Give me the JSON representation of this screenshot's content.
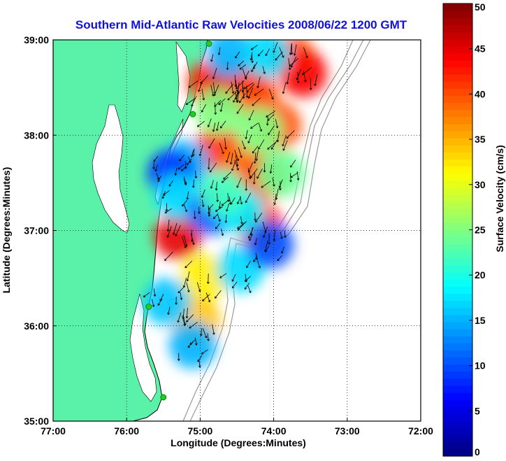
{
  "chart_data": {
    "type": "heatmap",
    "title": "Southern Mid-Atlantic Raw Velocities 2008/06/22 1200 GMT",
    "xlabel": "Longitude (Degrees:Minutes)",
    "ylabel": "Latitude (Degrees:Minutes)",
    "xlim": [
      -77,
      -72
    ],
    "ylim": [
      35,
      39
    ],
    "x_ticks": [
      {
        "v": -77,
        "label": "77:00"
      },
      {
        "v": -76,
        "label": "76:00"
      },
      {
        "v": -75,
        "label": "75:00"
      },
      {
        "v": -74,
        "label": "74:00"
      },
      {
        "v": -73,
        "label": "73:00"
      },
      {
        "v": -72,
        "label": "72:00"
      }
    ],
    "y_ticks": [
      {
        "v": 35,
        "label": "35:00"
      },
      {
        "v": 36,
        "label": "36:00"
      },
      {
        "v": 37,
        "label": "37:00"
      },
      {
        "v": 38,
        "label": "38:00"
      },
      {
        "v": 39,
        "label": "39:00"
      }
    ],
    "grid": true,
    "colorbar": {
      "label": "Surface Velocity (cm/s)",
      "range": [
        0,
        50
      ],
      "ticks": [
        {
          "v": 0,
          "label": "0"
        },
        {
          "v": 5,
          "label": "5"
        },
        {
          "v": 10,
          "label": "10"
        },
        {
          "v": 15,
          "label": "15"
        },
        {
          "v": 20,
          "label": "20"
        },
        {
          "v": 25,
          "label": "25"
        },
        {
          "v": 30,
          "label": "30"
        },
        {
          "v": 35,
          "label": "35"
        },
        {
          "v": 40,
          "label": "40"
        },
        {
          "v": 45,
          "label": "45"
        },
        {
          "v": 50,
          "label": "50"
        }
      ],
      "colormap": "jet"
    },
    "land_color": "#5af2a8",
    "station_color": "#22cc22",
    "stations": [
      {
        "lon": -74.88,
        "lat": 38.96
      },
      {
        "lon": -75.1,
        "lat": 38.22
      },
      {
        "lon": -75.7,
        "lat": 36.2
      },
      {
        "lon": -75.5,
        "lat": 35.25
      }
    ],
    "velocity_field": [
      {
        "lon": -74.85,
        "lat": 38.55,
        "speed": 42
      },
      {
        "lon": -74.6,
        "lat": 38.5,
        "speed": 46
      },
      {
        "lon": -74.4,
        "lat": 38.55,
        "speed": 43
      },
      {
        "lon": -74.25,
        "lat": 38.4,
        "speed": 40
      },
      {
        "lon": -73.75,
        "lat": 38.8,
        "speed": 40
      },
      {
        "lon": -73.6,
        "lat": 38.65,
        "speed": 44
      },
      {
        "lon": -73.95,
        "lat": 38.1,
        "speed": 40
      },
      {
        "lon": -74.75,
        "lat": 37.85,
        "speed": 42
      },
      {
        "lon": -74.4,
        "lat": 37.7,
        "speed": 38
      },
      {
        "lon": -74.15,
        "lat": 37.55,
        "speed": 40
      },
      {
        "lon": -74.2,
        "lat": 37.05,
        "speed": 42
      },
      {
        "lon": -75.3,
        "lat": 36.95,
        "speed": 45
      },
      {
        "lon": -74.95,
        "lat": 36.5,
        "speed": 32
      },
      {
        "lon": -75.05,
        "lat": 36.05,
        "speed": 34
      },
      {
        "lon": -75.2,
        "lat": 37.7,
        "speed": 15
      },
      {
        "lon": -74.6,
        "lat": 38.85,
        "speed": 15
      },
      {
        "lon": -74.1,
        "lat": 38.85,
        "speed": 17
      },
      {
        "lon": -75.4,
        "lat": 37.6,
        "speed": 9
      },
      {
        "lon": -75.3,
        "lat": 37.35,
        "speed": 17
      },
      {
        "lon": -74.85,
        "lat": 37.2,
        "speed": 11
      },
      {
        "lon": -74.45,
        "lat": 37.2,
        "speed": 18
      },
      {
        "lon": -74.45,
        "lat": 36.6,
        "speed": 17
      },
      {
        "lon": -74.05,
        "lat": 36.85,
        "speed": 10
      },
      {
        "lon": -75.45,
        "lat": 36.25,
        "speed": 16
      },
      {
        "lon": -75.1,
        "lat": 35.8,
        "speed": 15
      },
      {
        "lon": -74.75,
        "lat": 38.25,
        "speed": 25
      },
      {
        "lon": -74.2,
        "lat": 38.05,
        "speed": 25
      },
      {
        "lon": -73.9,
        "lat": 37.6,
        "speed": 24
      },
      {
        "lon": -74.7,
        "lat": 37.4,
        "speed": 22
      }
    ]
  }
}
